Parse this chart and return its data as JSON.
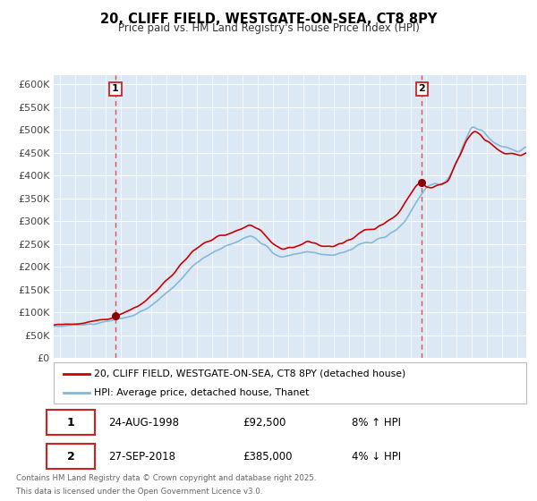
{
  "title": "20, CLIFF FIELD, WESTGATE-ON-SEA, CT8 8PY",
  "subtitle": "Price paid vs. HM Land Registry's House Price Index (HPI)",
  "legend_line1": "20, CLIFF FIELD, WESTGATE-ON-SEA, CT8 8PY (detached house)",
  "legend_line2": "HPI: Average price, detached house, Thanet",
  "sale1_date": "24-AUG-1998",
  "sale1_price": "£92,500",
  "sale1_hpi": "8% ↑ HPI",
  "sale2_date": "27-SEP-2018",
  "sale2_price": "£385,000",
  "sale2_hpi": "4% ↓ HPI",
  "footer_line1": "Contains HM Land Registry data © Crown copyright and database right 2025.",
  "footer_line2": "This data is licensed under the Open Government Licence v3.0.",
  "sale1_year": 1998.65,
  "sale1_value": 92500,
  "sale2_year": 2018.75,
  "sale2_value": 385000,
  "red_line_color": "#cc0000",
  "blue_line_color": "#85b8d8",
  "fig_bg_color": "#ffffff",
  "plot_bg_color": "#dce9f5",
  "grid_color": "#ffffff",
  "dashed_line_color": "#e05050",
  "marker_color": "#8b0000",
  "ylabel_color": "#444444",
  "ylim": [
    0,
    620000
  ],
  "yticks": [
    0,
    50000,
    100000,
    150000,
    200000,
    250000,
    300000,
    350000,
    400000,
    450000,
    500000,
    550000,
    600000
  ],
  "xlim_start": 1994.6,
  "xlim_end": 2025.6,
  "key_years_hpi": [
    1994.6,
    1995.0,
    1996.0,
    1997.0,
    1997.5,
    1998.0,
    1998.5,
    1999.0,
    1999.5,
    2000.0,
    2000.5,
    2001.0,
    2001.5,
    2002.0,
    2002.5,
    2003.0,
    2003.5,
    2004.0,
    2004.5,
    2005.0,
    2005.5,
    2006.0,
    2006.5,
    2007.0,
    2007.5,
    2008.0,
    2008.5,
    2009.0,
    2009.5,
    2010.0,
    2010.5,
    2011.0,
    2011.5,
    2012.0,
    2012.5,
    2013.0,
    2013.5,
    2014.0,
    2014.5,
    2015.0,
    2015.5,
    2016.0,
    2016.5,
    2017.0,
    2017.5,
    2018.0,
    2018.5,
    2019.0,
    2019.5,
    2020.0,
    2020.5,
    2021.0,
    2021.5,
    2022.0,
    2022.5,
    2023.0,
    2023.5,
    2024.0,
    2024.5,
    2025.0,
    2025.6
  ],
  "key_vals_hpi": [
    70000,
    71000,
    72500,
    75000,
    77000,
    80000,
    83000,
    86000,
    90000,
    97000,
    105000,
    115000,
    128000,
    143000,
    158000,
    175000,
    192000,
    208000,
    220000,
    232000,
    240000,
    248000,
    255000,
    262000,
    268000,
    260000,
    248000,
    230000,
    222000,
    225000,
    228000,
    232000,
    234000,
    228000,
    224000,
    226000,
    230000,
    238000,
    246000,
    252000,
    256000,
    262000,
    268000,
    278000,
    295000,
    318000,
    348000,
    372000,
    385000,
    378000,
    392000,
    428000,
    468000,
    510000,
    505000,
    488000,
    472000,
    462000,
    458000,
    455000,
    460000
  ],
  "key_years_red": [
    1994.6,
    1995.0,
    1996.0,
    1997.0,
    1997.5,
    1998.0,
    1998.5,
    1998.65,
    1999.0,
    1999.5,
    2000.0,
    2000.5,
    2001.0,
    2001.5,
    2002.0,
    2002.5,
    2003.0,
    2003.5,
    2004.0,
    2004.5,
    2005.0,
    2005.5,
    2006.0,
    2006.5,
    2007.0,
    2007.5,
    2008.0,
    2008.5,
    2009.0,
    2009.5,
    2010.0,
    2010.5,
    2011.0,
    2011.5,
    2012.0,
    2012.5,
    2013.0,
    2013.5,
    2014.0,
    2014.5,
    2015.0,
    2015.5,
    2016.0,
    2016.5,
    2017.0,
    2017.5,
    2018.0,
    2018.5,
    2018.75,
    2019.0,
    2019.5,
    2020.0,
    2020.5,
    2021.0,
    2021.5,
    2022.0,
    2022.5,
    2023.0,
    2023.5,
    2024.0,
    2024.5,
    2025.0,
    2025.6
  ],
  "key_vals_red": [
    72000,
    74000,
    76000,
    79000,
    82000,
    86000,
    90000,
    92500,
    96000,
    102000,
    112000,
    123000,
    136000,
    152000,
    170000,
    188000,
    208000,
    225000,
    240000,
    253000,
    262000,
    268000,
    272000,
    278000,
    286000,
    296000,
    284000,
    268000,
    248000,
    238000,
    242000,
    246000,
    252000,
    256000,
    248000,
    242000,
    246000,
    252000,
    262000,
    272000,
    278000,
    282000,
    290000,
    298000,
    310000,
    330000,
    358000,
    388000,
    385000,
    370000,
    380000,
    375000,
    390000,
    430000,
    468000,
    498000,
    492000,
    475000,
    462000,
    452000,
    448000,
    445000,
    450000
  ]
}
